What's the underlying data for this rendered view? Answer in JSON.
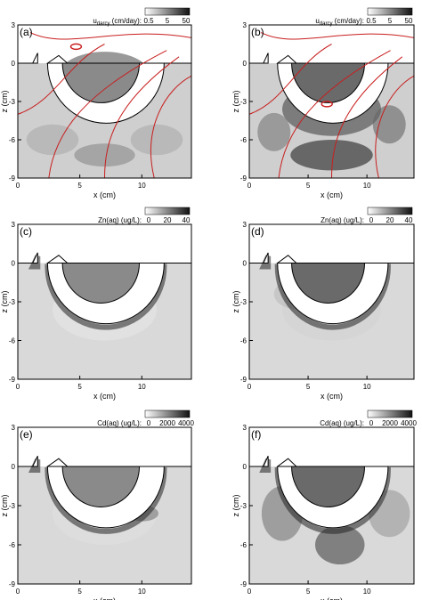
{
  "figure": {
    "axis_labels": {
      "x": "x (cm)",
      "z": "z (cm)"
    },
    "x_ticks": [
      "0",
      "5",
      "10"
    ],
    "z_ticks": [
      "3",
      "0",
      "-3",
      "-6",
      "-9"
    ]
  },
  "colorbars": [
    {
      "label": "u",
      "subscript": "darcy",
      "suffix": " (cm/day):",
      "ticks": [
        "0.5",
        "5",
        "50"
      ]
    },
    {
      "label": "Zn(aq) (ug/L):",
      "ticks": [
        "0",
        "20",
        "40"
      ]
    },
    {
      "label": "Cd(aq) (ug/L):",
      "ticks": [
        "0",
        "2000",
        "4000"
      ]
    }
  ],
  "chart_data": [
    {
      "type": "heatmap",
      "panel": "(a)",
      "field": "Darcy velocity with streamlines",
      "xlim": [
        0,
        14
      ],
      "ylim": [
        -9,
        3
      ],
      "streamline_color": "#c81e1e"
    },
    {
      "type": "heatmap",
      "panel": "(b)",
      "field": "Darcy velocity with streamlines",
      "xlim": [
        0,
        14
      ],
      "ylim": [
        -9,
        3
      ],
      "streamline_color": "#c81e1e"
    },
    {
      "type": "heatmap",
      "panel": "(c)",
      "field": "Zn(aq)",
      "xlim": [
        0,
        14
      ],
      "ylim": [
        -9,
        3
      ]
    },
    {
      "type": "heatmap",
      "panel": "(d)",
      "field": "Zn(aq)",
      "xlim": [
        0,
        14
      ],
      "ylim": [
        -9,
        3
      ]
    },
    {
      "type": "heatmap",
      "panel": "(e)",
      "field": "Cd(aq)",
      "xlim": [
        0,
        14
      ],
      "ylim": [
        -9,
        3
      ]
    },
    {
      "type": "heatmap",
      "panel": "(f)",
      "field": "Cd(aq)",
      "xlim": [
        0,
        14
      ],
      "ylim": [
        -9,
        3
      ]
    }
  ]
}
